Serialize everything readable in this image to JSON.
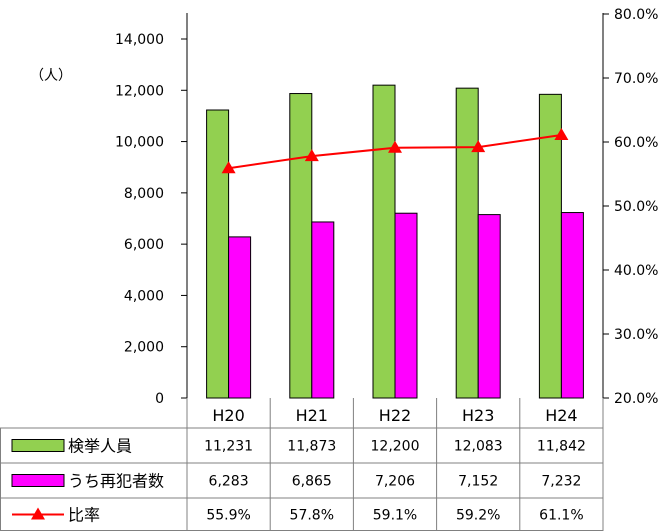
{
  "chart_data": {
    "type": "bar",
    "unit_label": "（人）",
    "categories": [
      "H20",
      "H21",
      "H22",
      "H23",
      "H24"
    ],
    "ylim": [
      0,
      14000
    ],
    "yticks": [
      "0",
      "2,000",
      "4,000",
      "6,000",
      "8,000",
      "10,000",
      "12,000",
      "14,000"
    ],
    "y2lim": [
      20,
      80
    ],
    "y2ticks": [
      "20.0%",
      "30.0%",
      "40.0%",
      "50.0%",
      "60.0%",
      "70.0%",
      "80.0%"
    ],
    "series": [
      {
        "name": "検挙人員",
        "type": "bar",
        "color": "#92d050",
        "values": [
          11231,
          11873,
          12200,
          12083,
          11842
        ],
        "labels": [
          "11,231",
          "11,873",
          "12,200",
          "12,083",
          "11,842"
        ]
      },
      {
        "name": "うち再犯者数",
        "type": "bar",
        "color": "#ff00ff",
        "values": [
          6283,
          6865,
          7206,
          7152,
          7232
        ],
        "labels": [
          "6,283",
          "6,865",
          "7,206",
          "7,152",
          "7,232"
        ]
      },
      {
        "name": "比率",
        "type": "line",
        "axis": "right",
        "color": "#ff0000",
        "values": [
          55.9,
          57.8,
          59.1,
          59.2,
          61.1
        ],
        "labels": [
          "55.9%",
          "57.8%",
          "59.1%",
          "59.2%",
          "61.1%"
        ]
      }
    ],
    "grid": false,
    "legend": "data-table"
  }
}
